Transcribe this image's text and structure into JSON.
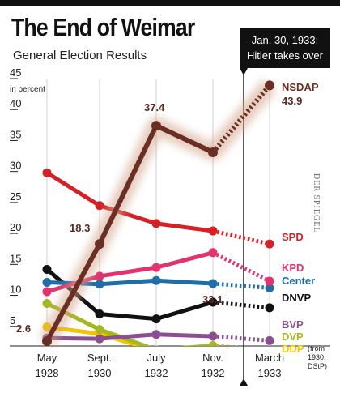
{
  "title": "The End of Weimar",
  "subtitle": "General Election Results",
  "callout": {
    "date": "Jan. 30, 1933:",
    "text": "Hitler takes over"
  },
  "watermark": "DER SPIEGEL",
  "chart_data": {
    "type": "line",
    "title": "The End of Weimar",
    "subtitle": "General Election Results",
    "ylabel": "in percent",
    "ylim": [
      0,
      45
    ],
    "y_ticks": [
      "5",
      "10",
      "15",
      "20",
      "25",
      "30",
      "35",
      "40",
      "45"
    ],
    "categories": [
      "May 1928",
      "Sept. 1930",
      "July 1932",
      "Nov. 1932",
      "March 1933"
    ],
    "x_tick_labels": [
      {
        "line1": "May",
        "line2": "1928"
      },
      {
        "line1": "Sept.",
        "line2": "1930"
      },
      {
        "line1": "July",
        "line2": "1932"
      },
      {
        "line1": "Nov.",
        "line2": "1932"
      },
      {
        "line1": "March",
        "line2": "1933"
      }
    ],
    "x_note": [
      "(from",
      "1930:",
      "DStP)"
    ],
    "annotations": [
      "Jan. 30, 1933: Hitler takes over"
    ],
    "series": [
      {
        "name": "NSDAP",
        "color": "#6b2e24",
        "values": [
          2.6,
          18.3,
          37.4,
          33.1,
          43.9
        ],
        "data_labels": [
          "2.6",
          "18.3",
          "37.4",
          "33.1",
          "43.9"
        ]
      },
      {
        "name": "SPD",
        "color": "#d42027",
        "values": [
          29.8,
          24.5,
          21.6,
          20.4,
          18.3
        ]
      },
      {
        "name": "KPD",
        "color": "#e0336f",
        "values": [
          10.6,
          13.1,
          14.5,
          16.9,
          12.3
        ]
      },
      {
        "name": "Center",
        "color": "#1f6ea8",
        "values": [
          12.1,
          11.8,
          12.4,
          11.9,
          11.2
        ]
      },
      {
        "name": "DNVP",
        "color": "#111111",
        "values": [
          14.2,
          7.0,
          6.2,
          8.9,
          8.0
        ]
      },
      {
        "name": "BVP",
        "color": "#8b4f8f",
        "values": [
          3.1,
          3.0,
          3.7,
          3.4,
          2.7
        ]
      },
      {
        "name": "DVP",
        "color": "#a5b820",
        "values": [
          8.7,
          4.5,
          1.2,
          1.9,
          1.1
        ]
      },
      {
        "name": "DDP",
        "color": "#f2c500",
        "values": [
          4.9,
          3.8,
          1.0,
          1.0,
          0.9
        ]
      }
    ]
  }
}
